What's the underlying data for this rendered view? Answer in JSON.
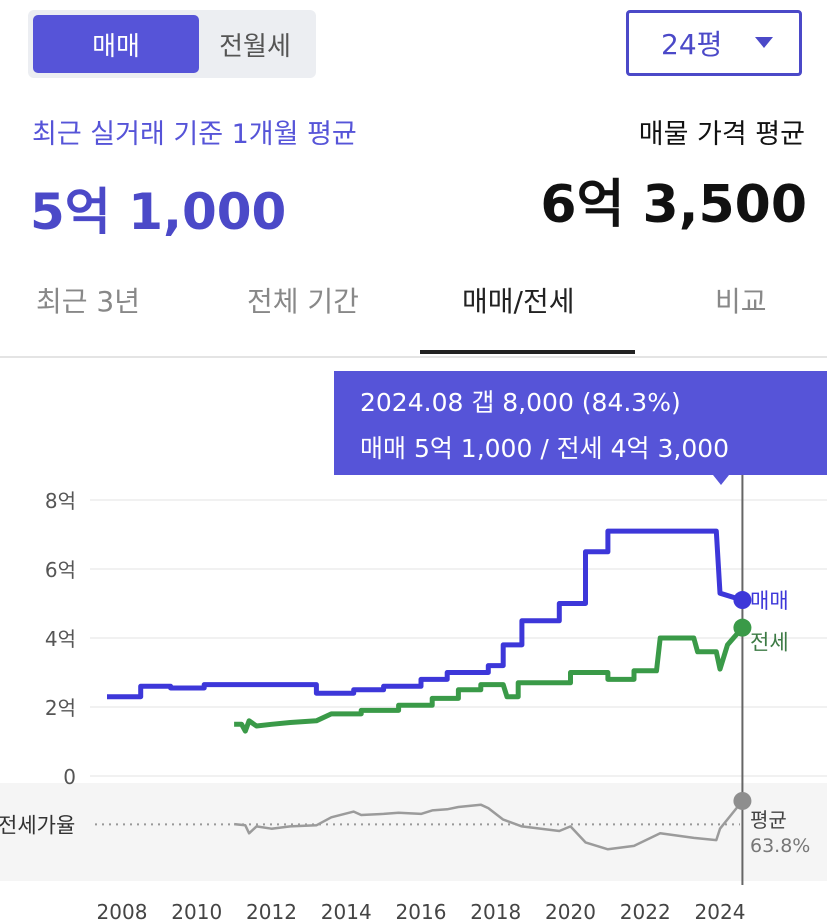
{
  "deal_toggle": {
    "sale": "매매",
    "lease": "전월세"
  },
  "size_select": {
    "value": "24평"
  },
  "recent": {
    "label": "최근 실거래 기준 1개월 평균",
    "value": "5억 1,000"
  },
  "listing": {
    "label": "매물 가격 평균",
    "value": "6억 3,500"
  },
  "tabs": [
    {
      "label": "최근 3년"
    },
    {
      "label": "전체 기간"
    },
    {
      "label": "매매/전세"
    },
    {
      "label": "비교"
    }
  ],
  "tooltip": {
    "line1": "2024.08  갭 8,000 (84.3%)",
    "line2": "매매 5억 1,000 / 전세 4억 3,000"
  },
  "colors": {
    "sale": "#3d37d9",
    "jeonse": "#3a9a48",
    "ratio": "#9b9b9b",
    "accent": "#5654d8"
  },
  "chart_data": {
    "type": "line",
    "y_ticks": [
      "8억",
      "6억",
      "4억",
      "2억",
      "0"
    ],
    "x_ticks": [
      "2008",
      "2010",
      "2012",
      "2014",
      "2016",
      "2018",
      "2020",
      "2022",
      "2024"
    ],
    "ylim": [
      0,
      8
    ],
    "y_unit": "억",
    "grid": true,
    "series": [
      {
        "name": "매매",
        "points": [
          [
            2007.6,
            2.3
          ],
          [
            2008.5,
            2.3
          ],
          [
            2008.5,
            2.6
          ],
          [
            2009.3,
            2.6
          ],
          [
            2009.3,
            2.55
          ],
          [
            2010.2,
            2.55
          ],
          [
            2010.2,
            2.65
          ],
          [
            2013.2,
            2.65
          ],
          [
            2013.2,
            2.4
          ],
          [
            2014.2,
            2.4
          ],
          [
            2014.2,
            2.5
          ],
          [
            2015.0,
            2.5
          ],
          [
            2015.0,
            2.6
          ],
          [
            2016.0,
            2.6
          ],
          [
            2016.0,
            2.8
          ],
          [
            2016.7,
            2.8
          ],
          [
            2016.7,
            3.0
          ],
          [
            2017.8,
            3.0
          ],
          [
            2017.8,
            3.2
          ],
          [
            2018.2,
            3.2
          ],
          [
            2018.2,
            3.8
          ],
          [
            2018.7,
            3.8
          ],
          [
            2018.7,
            4.5
          ],
          [
            2019.7,
            4.5
          ],
          [
            2019.7,
            5.0
          ],
          [
            2020.4,
            5.0
          ],
          [
            2020.4,
            6.5
          ],
          [
            2021.0,
            6.5
          ],
          [
            2021.0,
            7.1
          ],
          [
            2023.9,
            7.1
          ],
          [
            2024.0,
            5.3
          ],
          [
            2024.6,
            5.1
          ]
        ]
      },
      {
        "name": "전세",
        "points": [
          [
            2011.0,
            1.5
          ],
          [
            2011.2,
            1.5
          ],
          [
            2011.3,
            1.3
          ],
          [
            2011.4,
            1.6
          ],
          [
            2011.6,
            1.45
          ],
          [
            2012.0,
            1.5
          ],
          [
            2012.5,
            1.55
          ],
          [
            2013.2,
            1.6
          ],
          [
            2013.6,
            1.8
          ],
          [
            2014.4,
            1.8
          ],
          [
            2014.4,
            1.9
          ],
          [
            2015.4,
            1.9
          ],
          [
            2015.4,
            2.05
          ],
          [
            2016.3,
            2.05
          ],
          [
            2016.3,
            2.25
          ],
          [
            2017.0,
            2.25
          ],
          [
            2017.0,
            2.5
          ],
          [
            2017.6,
            2.5
          ],
          [
            2017.6,
            2.65
          ],
          [
            2018.2,
            2.65
          ],
          [
            2018.3,
            2.3
          ],
          [
            2018.6,
            2.3
          ],
          [
            2018.6,
            2.7
          ],
          [
            2020.0,
            2.7
          ],
          [
            2020.0,
            3.0
          ],
          [
            2021.0,
            3.0
          ],
          [
            2021.0,
            2.8
          ],
          [
            2021.7,
            2.8
          ],
          [
            2021.7,
            3.05
          ],
          [
            2022.3,
            3.05
          ],
          [
            2022.4,
            4.0
          ],
          [
            2023.3,
            4.0
          ],
          [
            2023.4,
            3.6
          ],
          [
            2023.9,
            3.6
          ],
          [
            2024.0,
            3.1
          ],
          [
            2024.2,
            3.8
          ],
          [
            2024.6,
            4.3
          ]
        ]
      },
      {
        "name": "전세가율",
        "points": [
          [
            2011.0,
            64
          ],
          [
            2011.3,
            63
          ],
          [
            2011.4,
            56
          ],
          [
            2011.6,
            62
          ],
          [
            2012.0,
            60
          ],
          [
            2012.5,
            62
          ],
          [
            2013.2,
            63
          ],
          [
            2013.6,
            70
          ],
          [
            2014.2,
            75
          ],
          [
            2014.4,
            72
          ],
          [
            2015.0,
            73
          ],
          [
            2015.4,
            74
          ],
          [
            2016.0,
            73
          ],
          [
            2016.3,
            76
          ],
          [
            2016.7,
            77
          ],
          [
            2017.0,
            79
          ],
          [
            2017.6,
            81
          ],
          [
            2017.8,
            78
          ],
          [
            2018.2,
            68
          ],
          [
            2018.7,
            62
          ],
          [
            2019.7,
            58
          ],
          [
            2020.0,
            62
          ],
          [
            2020.4,
            48
          ],
          [
            2021.0,
            42
          ],
          [
            2021.7,
            45
          ],
          [
            2022.4,
            56
          ],
          [
            2023.3,
            52
          ],
          [
            2023.9,
            50
          ],
          [
            2024.0,
            60
          ],
          [
            2024.6,
            84.3
          ]
        ]
      }
    ],
    "end_labels": {
      "sale": "매매",
      "jeonse": "전세",
      "ratio": "평균",
      "ratio_value": "63.8%"
    },
    "ratio_axis_label": "전세가율",
    "ratio_average": 63.8,
    "marker_x": 2024.6
  }
}
